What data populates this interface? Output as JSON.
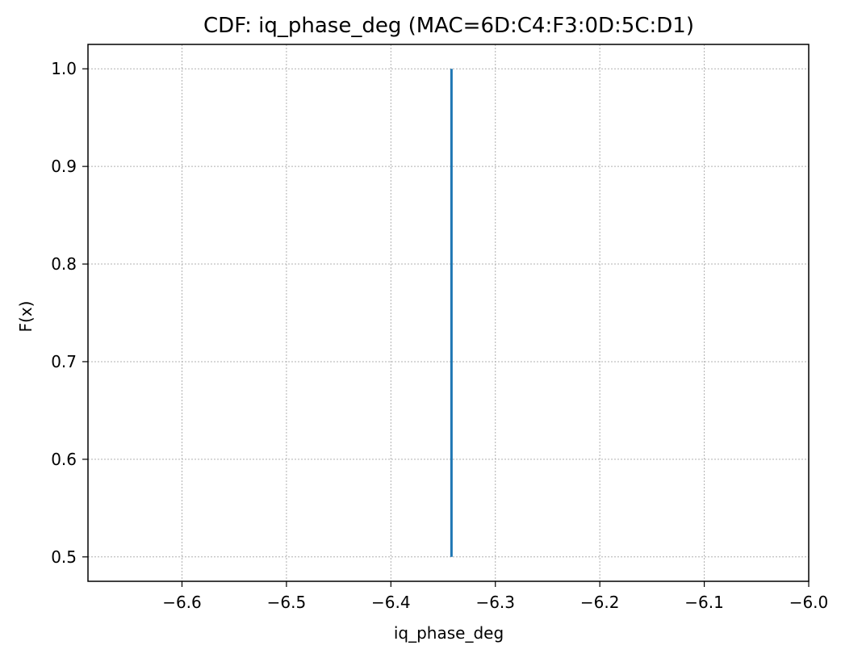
{
  "chart_data": {
    "type": "line",
    "title": "CDF: iq_phase_deg (MAC=6D:C4:F3:0D:5C:D1)",
    "xlabel": "iq_phase_deg",
    "ylabel": "F(x)",
    "xlim": [
      -6.69,
      -6.0
    ],
    "ylim": [
      0.475,
      1.025
    ],
    "x_ticks": [
      -6.6,
      -6.5,
      -6.4,
      -6.3,
      -6.2,
      -6.1,
      -6.0
    ],
    "x_tick_labels": [
      "−6.6",
      "−6.5",
      "−6.4",
      "−6.3",
      "−6.2",
      "−6.1",
      "−6.0"
    ],
    "y_ticks": [
      0.5,
      0.6,
      0.7,
      0.8,
      0.9,
      1.0
    ],
    "y_tick_labels": [
      "0.5",
      "0.6",
      "0.7",
      "0.8",
      "0.9",
      "1.0"
    ],
    "grid": true,
    "legend": "none",
    "series": [
      {
        "color": "#1f77b4",
        "points": [
          {
            "x": -6.342,
            "y": 0.5
          },
          {
            "x": -6.342,
            "y": 1.0
          }
        ]
      }
    ]
  }
}
